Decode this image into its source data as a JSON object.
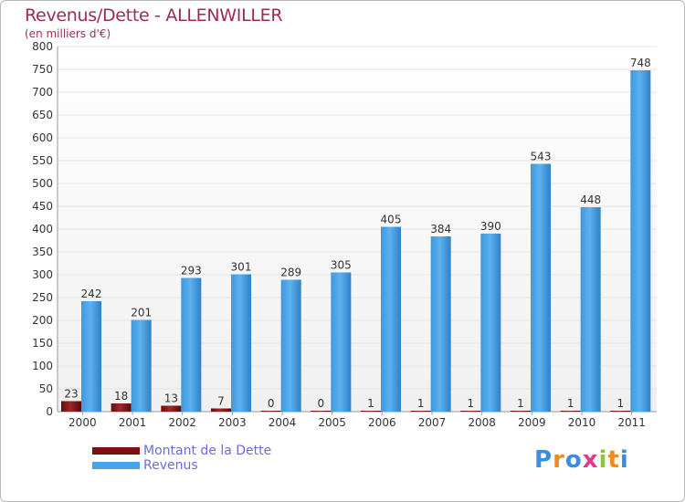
{
  "title": "Revenus/Dette - ALLENWILLER",
  "subtitle": "(en milliers d'€)",
  "legend": [
    {
      "label": "Montant de la Dette",
      "color": "#7a1010"
    },
    {
      "label": "Revenus",
      "color": "#4aa3e8"
    }
  ],
  "logo": {
    "text": "Proxiti",
    "letters": [
      {
        "ch": "P",
        "color": "#3b8de0"
      },
      {
        "ch": "r",
        "color": "#f08a1c"
      },
      {
        "ch": "o",
        "color": "#3b8de0"
      },
      {
        "ch": "x",
        "color": "#e03c8c"
      },
      {
        "ch": "i",
        "color": "#8cc63f"
      },
      {
        "ch": "t",
        "color": "#f08a1c"
      },
      {
        "ch": "i",
        "color": "#3b8de0"
      }
    ]
  },
  "chart_data": {
    "type": "bar",
    "title": "Revenus/Dette - ALLENWILLER",
    "ylabel": "(en milliers d'€)",
    "xlabel": "",
    "categories": [
      "2000",
      "2001",
      "2002",
      "2003",
      "2004",
      "2005",
      "2006",
      "2007",
      "2008",
      "2009",
      "2010",
      "2011"
    ],
    "ylim": [
      0,
      800
    ],
    "yticks": [
      0,
      50,
      100,
      150,
      200,
      250,
      300,
      350,
      400,
      450,
      500,
      550,
      600,
      650,
      700,
      750,
      800
    ],
    "series": [
      {
        "name": "Montant de la Dette",
        "color": "#7a1010",
        "values": [
          23,
          18,
          13,
          7,
          0,
          0,
          1,
          1,
          1,
          1,
          1,
          1
        ]
      },
      {
        "name": "Revenus",
        "color": "#4aa3e8",
        "values": [
          242,
          201,
          293,
          301,
          289,
          305,
          405,
          384,
          390,
          543,
          448,
          748
        ]
      }
    ],
    "grid": true,
    "legend_position": "bottom-left"
  }
}
